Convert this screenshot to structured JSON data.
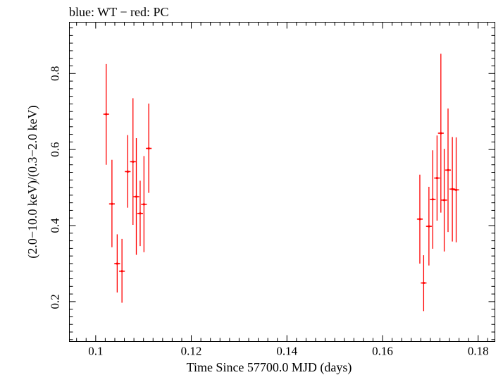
{
  "chart_data": {
    "type": "scatter",
    "title": "blue: WT − red: PC",
    "xlabel": "Time Since 57700.0 MJD (days)",
    "ylabel": "(2.0−10.0 keV)/(0.3−2.0 keV)",
    "xlim": [
      0.0945,
      0.1835
    ],
    "ylim": [
      0.095,
      0.935
    ],
    "x_ticks": [
      0.1,
      0.12,
      0.14,
      0.16,
      0.18
    ],
    "x_tick_labels": [
      "0.1",
      "0.12",
      "0.14",
      "0.16",
      "0.18"
    ],
    "y_ticks": [
      0.2,
      0.4,
      0.6,
      0.8
    ],
    "y_tick_labels": [
      "0.2",
      "0.4",
      "0.6",
      "0.8"
    ],
    "grid": false,
    "series": [
      {
        "name": "PC",
        "color": "#ff0000",
        "points": [
          {
            "x": 0.1022,
            "y": 0.693,
            "xerr": 0.0006,
            "ylo": 0.56,
            "yhi": 0.825
          },
          {
            "x": 0.1034,
            "y": 0.457,
            "xerr": 0.0006,
            "ylo": 0.343,
            "yhi": 0.573
          },
          {
            "x": 0.1045,
            "y": 0.3,
            "xerr": 0.0006,
            "ylo": 0.224,
            "yhi": 0.377
          },
          {
            "x": 0.1055,
            "y": 0.28,
            "xerr": 0.0006,
            "ylo": 0.197,
            "yhi": 0.365
          },
          {
            "x": 0.1067,
            "y": 0.542,
            "xerr": 0.0006,
            "ylo": 0.447,
            "yhi": 0.638
          },
          {
            "x": 0.1078,
            "y": 0.568,
            "xerr": 0.0006,
            "ylo": 0.402,
            "yhi": 0.735
          },
          {
            "x": 0.1085,
            "y": 0.476,
            "xerr": 0.0006,
            "ylo": 0.323,
            "yhi": 0.63
          },
          {
            "x": 0.1093,
            "y": 0.432,
            "xerr": 0.0006,
            "ylo": 0.346,
            "yhi": 0.518
          },
          {
            "x": 0.1101,
            "y": 0.456,
            "xerr": 0.0006,
            "ylo": 0.33,
            "yhi": 0.583
          },
          {
            "x": 0.1111,
            "y": 0.603,
            "xerr": 0.0006,
            "ylo": 0.486,
            "yhi": 0.721
          },
          {
            "x": 0.1678,
            "y": 0.417,
            "xerr": 0.0006,
            "ylo": 0.3,
            "yhi": 0.534
          },
          {
            "x": 0.1686,
            "y": 0.249,
            "xerr": 0.0006,
            "ylo": 0.175,
            "yhi": 0.322
          },
          {
            "x": 0.1697,
            "y": 0.398,
            "xerr": 0.0006,
            "ylo": 0.295,
            "yhi": 0.502
          },
          {
            "x": 0.1705,
            "y": 0.469,
            "xerr": 0.0006,
            "ylo": 0.339,
            "yhi": 0.598
          },
          {
            "x": 0.1714,
            "y": 0.525,
            "xerr": 0.0006,
            "ylo": 0.413,
            "yhi": 0.637
          },
          {
            "x": 0.1722,
            "y": 0.643,
            "xerr": 0.0006,
            "ylo": 0.434,
            "yhi": 0.852
          },
          {
            "x": 0.1729,
            "y": 0.467,
            "xerr": 0.0006,
            "ylo": 0.332,
            "yhi": 0.602
          },
          {
            "x": 0.1737,
            "y": 0.546,
            "xerr": 0.0006,
            "ylo": 0.383,
            "yhi": 0.708
          },
          {
            "x": 0.1746,
            "y": 0.496,
            "xerr": 0.0006,
            "ylo": 0.358,
            "yhi": 0.633
          },
          {
            "x": 0.1754,
            "y": 0.494,
            "xerr": 0.0006,
            "ylo": 0.356,
            "yhi": 0.632
          }
        ]
      }
    ]
  }
}
